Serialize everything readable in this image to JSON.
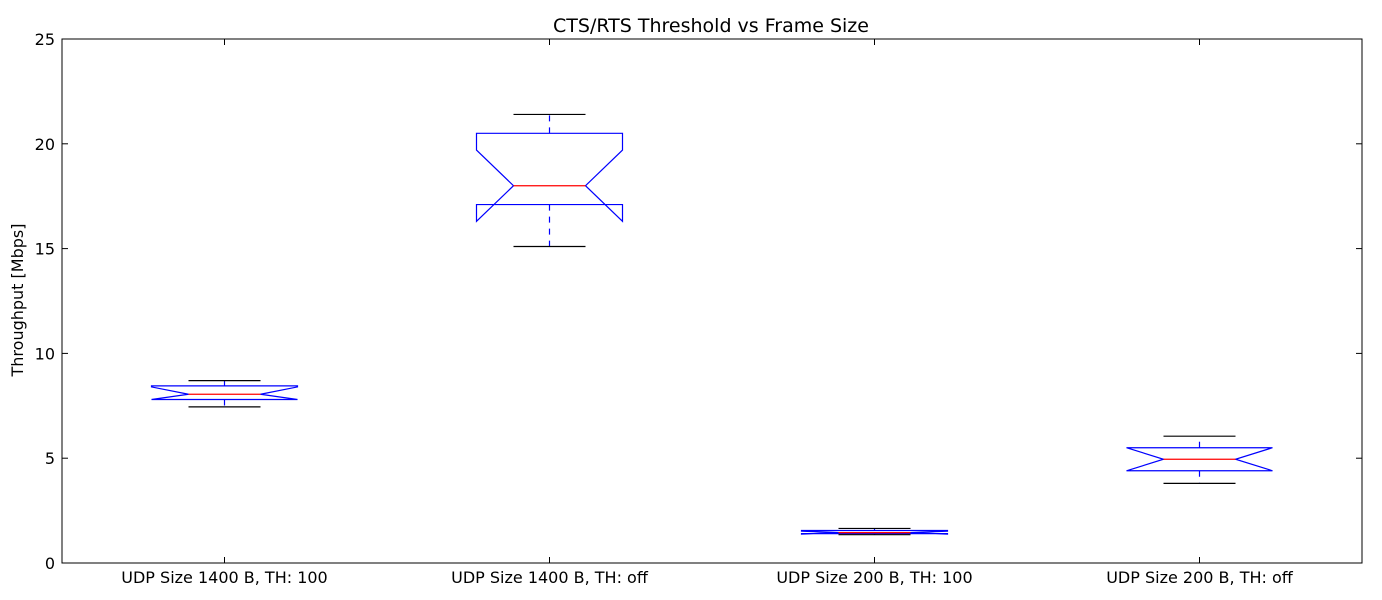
{
  "chart_data": {
    "type": "boxplot",
    "title": "CTS/RTS Threshold vs Frame Size",
    "xlabel": "",
    "ylabel": "Throughput [Mbps]",
    "ylim": [
      0,
      25
    ],
    "yticks": [
      "0",
      "5",
      "10",
      "15",
      "20",
      "25"
    ],
    "notched": true,
    "grid": false,
    "categories": [
      "UDP Size 1400 B, TH: 100",
      "UDP Size 1400 B, TH: off",
      "UDP Size 200 B, TH: 100",
      "UDP Size 200 B, TH: off"
    ],
    "boxes": [
      {
        "whisker_low": 7.45,
        "q1": 7.8,
        "median": 8.05,
        "q3": 8.45,
        "whisker_high": 8.7,
        "notch_low": 7.8,
        "notch_high": 8.4
      },
      {
        "whisker_low": 15.1,
        "q1": 17.1,
        "median": 18.0,
        "q3": 20.5,
        "whisker_high": 21.4,
        "notch_low": 16.3,
        "notch_high": 19.7
      },
      {
        "whisker_low": 1.35,
        "q1": 1.4,
        "median": 1.45,
        "q3": 1.55,
        "whisker_high": 1.65,
        "notch_low": 1.38,
        "notch_high": 1.52
      },
      {
        "whisker_low": 3.8,
        "q1": 4.4,
        "median": 4.95,
        "q3": 5.5,
        "whisker_high": 6.05,
        "notch_low": 4.4,
        "notch_high": 5.5
      }
    ],
    "colors": {
      "box": "#0000ff",
      "median": "#ff0000",
      "cap": "#000000",
      "frame": "#000000"
    }
  }
}
